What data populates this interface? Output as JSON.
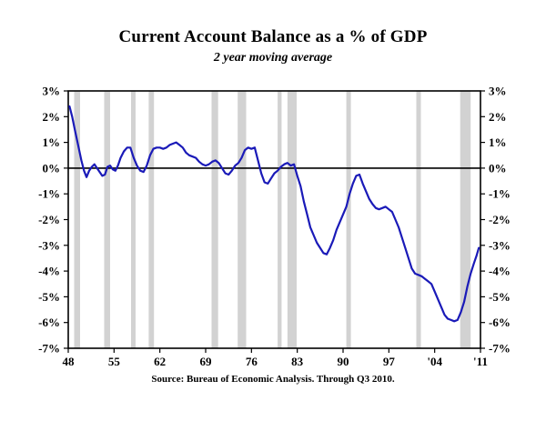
{
  "page": {
    "title": "Current Account Balance as a % of GDP",
    "subtitle": "2 year moving average",
    "source": "Source:  Bureau of Economic Analysis. Through Q3 2010."
  },
  "chart_data": {
    "type": "line",
    "title": "Current Account Balance as a % of GDP",
    "subtitle": "2 year moving average",
    "source": "Source:  Bureau of Economic Analysis. Through Q3 2010.",
    "xlim": [
      1948,
      2011
    ],
    "ylim": [
      -7,
      3
    ],
    "grid": false,
    "legend_position": "none",
    "zero_line": true,
    "line_color": "#1a1ab8",
    "recession_band_color": "#d2d2d2",
    "axis_color": "#000000",
    "x_ticks": [
      1948,
      1955,
      1962,
      1969,
      1976,
      1983,
      1990,
      1997,
      2004,
      2011
    ],
    "x_tick_labels": [
      "48",
      "55",
      "62",
      "69",
      "76",
      "83",
      "90",
      "97",
      "'04",
      "'11"
    ],
    "y_ticks": [
      3,
      2,
      1,
      0,
      -1,
      -2,
      -3,
      -4,
      -5,
      -6,
      -7
    ],
    "y_tick_labels": [
      "3%",
      "2%",
      "1%",
      "0%",
      "-1%",
      "-2%",
      "-3%",
      "-4%",
      "-5%",
      "-6%",
      "-7%"
    ],
    "recessions": [
      [
        1948.9,
        1949.8
      ],
      [
        1953.5,
        1954.4
      ],
      [
        1957.6,
        1958.3
      ],
      [
        1960.3,
        1961.1
      ],
      [
        1969.9,
        1970.9
      ],
      [
        1973.9,
        1975.2
      ],
      [
        1980.0,
        1980.6
      ],
      [
        1981.5,
        1982.9
      ],
      [
        1990.5,
        1991.2
      ],
      [
        2001.2,
        2001.9
      ],
      [
        2007.9,
        2009.5
      ]
    ],
    "series": [
      {
        "name": "Current account balance, 2 year moving average (% of GDP)",
        "x": [
          1948.2,
          1948.6,
          1949,
          1949.5,
          1950,
          1950.4,
          1950.8,
          1951.2,
          1951.6,
          1952,
          1952.4,
          1952.8,
          1953.2,
          1953.6,
          1954,
          1954.4,
          1954.8,
          1955.2,
          1955.6,
          1956,
          1956.5,
          1957,
          1957.5,
          1958,
          1958.5,
          1959,
          1959.5,
          1960,
          1960.5,
          1961,
          1961.5,
          1962,
          1962.5,
          1963,
          1963.5,
          1964,
          1964.5,
          1965,
          1965.5,
          1966,
          1966.5,
          1967,
          1967.5,
          1968,
          1968.5,
          1969,
          1969.5,
          1970,
          1970.5,
          1971,
          1971.5,
          1972,
          1972.5,
          1973,
          1973.5,
          1974,
          1974.5,
          1975,
          1975.5,
          1976,
          1976.5,
          1977,
          1977.5,
          1978,
          1978.5,
          1979,
          1979.5,
          1980,
          1980.5,
          1981,
          1981.5,
          1982,
          1982.5,
          1983,
          1983.5,
          1984,
          1984.5,
          1985,
          1985.5,
          1986,
          1986.5,
          1987,
          1987.5,
          1988,
          1988.5,
          1989,
          1989.5,
          1990,
          1990.5,
          1991,
          1991.5,
          1992,
          1992.5,
          1993,
          1993.5,
          1994,
          1994.5,
          1995,
          1995.5,
          1996,
          1996.5,
          1997,
          1997.5,
          1998,
          1998.5,
          1999,
          1999.5,
          2000,
          2000.5,
          2001,
          2001.5,
          2002,
          2002.5,
          2003,
          2003.5,
          2004,
          2004.5,
          2005,
          2005.5,
          2006,
          2006.5,
          2007,
          2007.5,
          2008,
          2008.5,
          2009,
          2009.5,
          2010,
          2010.4,
          2010.75
        ],
        "y": [
          2.4,
          2.0,
          1.5,
          0.9,
          0.3,
          -0.1,
          -0.35,
          -0.1,
          0.05,
          0.15,
          0.0,
          -0.15,
          -0.3,
          -0.25,
          0.05,
          0.1,
          -0.05,
          -0.1,
          0.1,
          0.4,
          0.65,
          0.8,
          0.8,
          0.4,
          0.1,
          -0.1,
          -0.15,
          0.1,
          0.5,
          0.75,
          0.8,
          0.8,
          0.75,
          0.8,
          0.9,
          0.95,
          1.0,
          0.9,
          0.8,
          0.6,
          0.5,
          0.45,
          0.4,
          0.25,
          0.15,
          0.1,
          0.15,
          0.25,
          0.3,
          0.2,
          0.0,
          -0.2,
          -0.25,
          -0.1,
          0.1,
          0.2,
          0.4,
          0.7,
          0.8,
          0.75,
          0.8,
          0.3,
          -0.2,
          -0.55,
          -0.6,
          -0.4,
          -0.2,
          -0.1,
          0.05,
          0.15,
          0.2,
          0.1,
          0.15,
          -0.3,
          -0.7,
          -1.3,
          -1.8,
          -2.3,
          -2.6,
          -2.9,
          -3.1,
          -3.3,
          -3.35,
          -3.1,
          -2.8,
          -2.4,
          -2.1,
          -1.8,
          -1.5,
          -1.0,
          -0.6,
          -0.3,
          -0.25,
          -0.6,
          -0.9,
          -1.2,
          -1.4,
          -1.55,
          -1.6,
          -1.55,
          -1.5,
          -1.6,
          -1.7,
          -2.0,
          -2.3,
          -2.7,
          -3.1,
          -3.5,
          -3.9,
          -4.1,
          -4.15,
          -4.2,
          -4.3,
          -4.4,
          -4.5,
          -4.8,
          -5.1,
          -5.4,
          -5.7,
          -5.85,
          -5.9,
          -5.95,
          -5.9,
          -5.6,
          -5.2,
          -4.6,
          -4.1,
          -3.7,
          -3.4,
          -3.1
        ]
      }
    ]
  }
}
